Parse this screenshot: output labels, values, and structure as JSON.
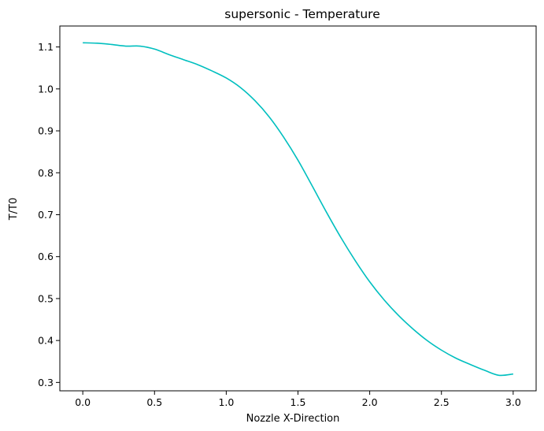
{
  "chart_data": {
    "type": "line",
    "title": "supersonic - Temperature",
    "xlabel": "Nozzle X-Direction",
    "ylabel": "T/T0",
    "xlim": [
      -0.16,
      3.16
    ],
    "ylim": [
      0.28,
      1.15
    ],
    "xticks": [
      0.0,
      0.5,
      1.0,
      1.5,
      2.0,
      2.5,
      3.0
    ],
    "xtick_labels": [
      "0.0",
      "0.5",
      "1.0",
      "1.5",
      "2.0",
      "2.5",
      "3.0"
    ],
    "yticks": [
      0.3,
      0.4,
      0.5,
      0.6,
      0.7,
      0.8,
      0.9,
      1.0,
      1.1
    ],
    "ytick_labels": [
      "0.3",
      "0.4",
      "0.5",
      "0.6",
      "0.7",
      "0.8",
      "0.9",
      "1.0",
      "1.1"
    ],
    "grid": false,
    "series": [
      {
        "color": "#00bfbf",
        "x": [
          0.0,
          0.1,
          0.2,
          0.3,
          0.4,
          0.5,
          0.6,
          0.7,
          0.8,
          0.9,
          1.0,
          1.1,
          1.2,
          1.3,
          1.4,
          1.5,
          1.6,
          1.7,
          1.8,
          1.9,
          2.0,
          2.1,
          2.2,
          2.3,
          2.4,
          2.5,
          2.6,
          2.7,
          2.8,
          2.9,
          3.0
        ],
        "y": [
          1.11,
          1.109,
          1.106,
          1.102,
          1.102,
          1.095,
          1.082,
          1.07,
          1.058,
          1.043,
          1.026,
          1.003,
          0.972,
          0.933,
          0.885,
          0.83,
          0.768,
          0.705,
          0.645,
          0.59,
          0.54,
          0.497,
          0.46,
          0.428,
          0.4,
          0.377,
          0.358,
          0.343,
          0.329,
          0.317,
          0.32
        ]
      }
    ]
  }
}
